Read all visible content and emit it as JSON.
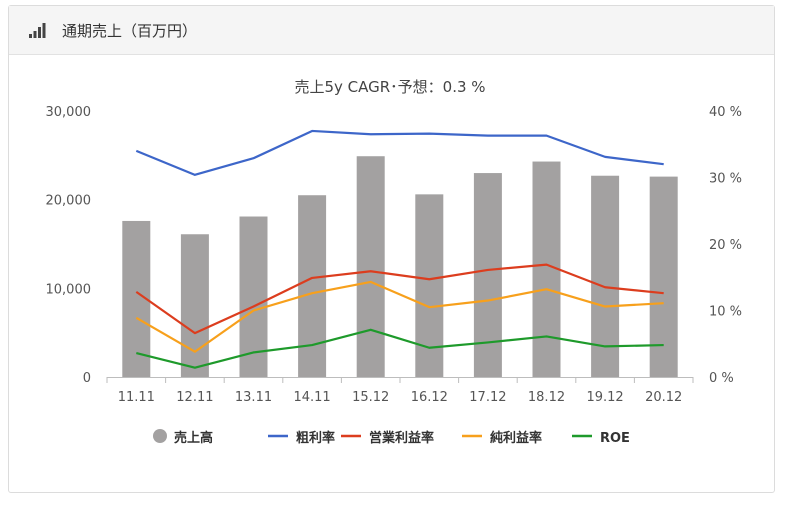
{
  "panel": {
    "title": "通期売上（百万円）",
    "icon": "bar-chart-icon"
  },
  "chart_data": {
    "type": "bar",
    "title": "売上5y CAGR･予想：0.3 %",
    "categories": [
      "11.11",
      "12.11",
      "13.11",
      "14.11",
      "15.12",
      "16.12",
      "17.12",
      "18.12",
      "19.12",
      "20.12"
    ],
    "left_axis": {
      "ylim": [
        0,
        30000
      ],
      "ticks": [
        "0",
        "10,000",
        "20,000",
        "30,000"
      ]
    },
    "right_axis": {
      "ylim": [
        0,
        40
      ],
      "ticks": [
        "0 %",
        "10 %",
        "20 %",
        "30 %",
        "40 %"
      ]
    },
    "series": [
      {
        "name": "売上高",
        "type": "bar",
        "axis": "left",
        "color": "#a3a1a1",
        "values": [
          17600,
          16100,
          18100,
          20500,
          24900,
          20600,
          23000,
          24300,
          22700,
          22600
        ]
      },
      {
        "name": "粗利率",
        "type": "line",
        "axis": "right",
        "color": "#3d66c9",
        "values": [
          34.0,
          30.4,
          32.9,
          37.0,
          36.5,
          36.6,
          36.3,
          36.3,
          33.1,
          32.0
        ]
      },
      {
        "name": "営業利益率",
        "type": "line",
        "axis": "right",
        "color": "#dc3d1e",
        "values": [
          12.8,
          6.6,
          10.6,
          14.9,
          15.9,
          14.7,
          16.1,
          16.9,
          13.5,
          12.6
        ]
      },
      {
        "name": "純利益率",
        "type": "line",
        "axis": "right",
        "color": "#f7a01c",
        "values": [
          8.9,
          3.8,
          10.0,
          12.6,
          14.3,
          10.5,
          11.5,
          13.2,
          10.6,
          11.1
        ]
      },
      {
        "name": "ROE",
        "type": "line",
        "axis": "right",
        "color": "#1e9a2b",
        "values": [
          3.6,
          1.4,
          3.7,
          4.8,
          7.1,
          4.4,
          5.2,
          6.1,
          4.6,
          4.8
        ]
      }
    ],
    "legend_position": "bottom",
    "grid": false
  }
}
